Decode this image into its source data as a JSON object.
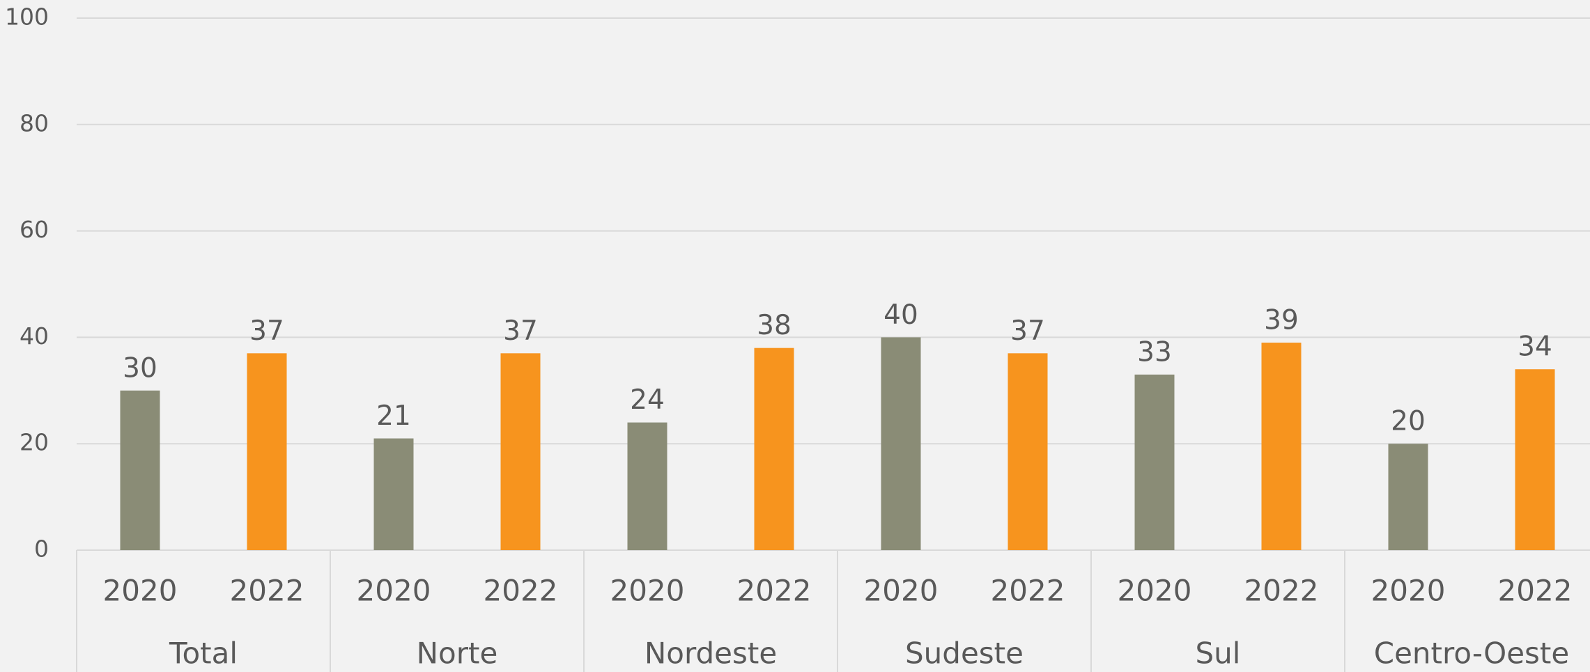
{
  "chart_data": {
    "type": "bar",
    "categories": [
      "Total",
      "Norte",
      "Nordeste",
      "Sudeste",
      "Sul",
      "Centro-Oeste"
    ],
    "series": [
      {
        "name": "2020",
        "color": "#8a8c76",
        "values": [
          30,
          21,
          24,
          40,
          33,
          20
        ]
      },
      {
        "name": "2022",
        "color": "#f7941e",
        "values": [
          37,
          37,
          38,
          37,
          39,
          34
        ]
      }
    ],
    "ylim": [
      0,
      100
    ],
    "yticks": [
      0,
      20,
      40,
      60,
      80,
      100
    ],
    "grid": true
  }
}
